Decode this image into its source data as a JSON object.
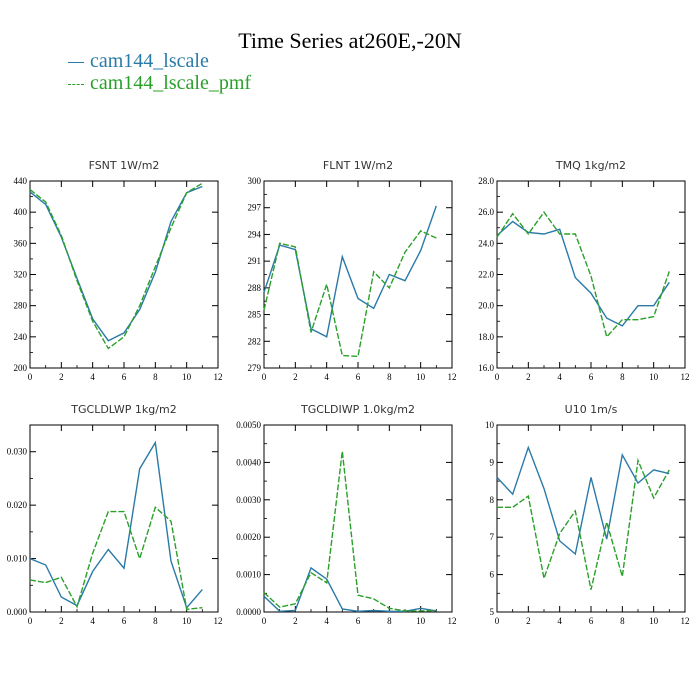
{
  "title": "Time Series at260E,-20N",
  "colors": {
    "series1": "#2a7aa8",
    "series2": "#2aa02a"
  },
  "legend": [
    "cam144_lscale",
    "cam144_lscale_pmf"
  ],
  "chart_data": [
    {
      "type": "line",
      "title": "FSNT   1W/m2",
      "xlim": [
        0,
        12
      ],
      "xticks": [
        0,
        2,
        4,
        6,
        8,
        10,
        12
      ],
      "ylim": [
        200,
        440
      ],
      "yticks": [
        200,
        240,
        280,
        320,
        360,
        400,
        440
      ],
      "ytick_labels": [
        "200",
        "240",
        "280",
        "320",
        "360",
        "400",
        "440"
      ],
      "x": [
        0,
        1,
        2,
        3,
        4,
        5,
        6,
        7,
        8,
        9,
        10,
        11
      ],
      "series": [
        {
          "name": "cam144_lscale",
          "values": [
            426,
            410,
            368,
            315,
            263,
            235,
            245,
            275,
            323,
            388,
            425,
            433
          ]
        },
        {
          "name": "cam144_lscale_pmf",
          "values": [
            429,
            413,
            370,
            312,
            260,
            225,
            240,
            280,
            330,
            380,
            425,
            437
          ]
        }
      ]
    },
    {
      "type": "line",
      "title": "FLNT   1W/m2",
      "xlim": [
        0,
        12
      ],
      "xticks": [
        0,
        2,
        4,
        6,
        8,
        10,
        12
      ],
      "ylim": [
        279,
        300
      ],
      "yticks": [
        279,
        282,
        285,
        288,
        291,
        294,
        297,
        300
      ],
      "ytick_labels": [
        "279",
        "282",
        "285",
        "288",
        "291",
        "294",
        "297",
        "300"
      ],
      "x": [
        0,
        1,
        2,
        3,
        4,
        5,
        6,
        7,
        8,
        9,
        10,
        11
      ],
      "series": [
        {
          "name": "cam144_lscale",
          "values": [
            287.5,
            292.8,
            292.3,
            283.4,
            282.5,
            291.5,
            286.8,
            285.7,
            289.5,
            288.8,
            292.2,
            297.2
          ]
        },
        {
          "name": "cam144_lscale_pmf",
          "values": [
            285.5,
            293.0,
            292.6,
            283.0,
            288.4,
            280.4,
            280.3,
            289.8,
            288.0,
            292.0,
            294.4,
            293.6
          ]
        }
      ]
    },
    {
      "type": "line",
      "title": "TMQ   1kg/m2",
      "xlim": [
        0,
        12
      ],
      "xticks": [
        0,
        2,
        4,
        6,
        8,
        10,
        12
      ],
      "ylim": [
        16,
        28
      ],
      "yticks": [
        16,
        18,
        20,
        22,
        24,
        26,
        28
      ],
      "ytick_labels": [
        "16.0",
        "18.0",
        "20.0",
        "22.0",
        "24.0",
        "26.0",
        "28.0"
      ],
      "x": [
        0,
        1,
        2,
        3,
        4,
        5,
        6,
        7,
        8,
        9,
        10,
        11
      ],
      "series": [
        {
          "name": "cam144_lscale",
          "values": [
            24.5,
            25.4,
            24.7,
            24.6,
            24.9,
            21.8,
            20.8,
            19.2,
            18.7,
            20.0,
            20.0,
            21.5
          ]
        },
        {
          "name": "cam144_lscale_pmf",
          "values": [
            24.4,
            25.9,
            24.6,
            26.0,
            24.6,
            24.6,
            21.9,
            18.0,
            19.1,
            19.1,
            19.3,
            22.2
          ]
        }
      ]
    },
    {
      "type": "line",
      "title": "TGCLDLWP   1kg/m2",
      "xlim": [
        0,
        12
      ],
      "xticks": [
        0,
        2,
        4,
        6,
        8,
        10,
        12
      ],
      "ylim": [
        0,
        0.035
      ],
      "yticks": [
        0,
        0.01,
        0.02,
        0.03
      ],
      "ytick_labels": [
        "0.000",
        "0.010",
        "0.020",
        "0.030"
      ],
      "x": [
        0,
        1,
        2,
        3,
        4,
        5,
        6,
        7,
        8,
        9,
        10,
        11
      ],
      "series": [
        {
          "name": "cam144_lscale",
          "values": [
            0.01,
            0.0088,
            0.0028,
            0.0012,
            0.0076,
            0.0117,
            0.0082,
            0.0268,
            0.0317,
            0.0095,
            0.0008,
            0.0042
          ]
        },
        {
          "name": "cam144_lscale_pmf",
          "values": [
            0.006,
            0.0055,
            0.0065,
            0.001,
            0.011,
            0.0188,
            0.0188,
            0.01,
            0.0196,
            0.017,
            0.0005,
            0.0008
          ]
        }
      ]
    },
    {
      "type": "line",
      "title": "TGCLDIWP   1.0kg/m2",
      "xlim": [
        0,
        12
      ],
      "xticks": [
        0,
        2,
        4,
        6,
        8,
        10,
        12
      ],
      "ylim": [
        0,
        0.005
      ],
      "yticks": [
        0,
        0.001,
        0.002,
        0.003,
        0.004,
        0.005
      ],
      "ytick_labels": [
        "0.0000",
        "0.0010",
        "0.0020",
        "0.0030",
        "0.0040",
        "0.0050"
      ],
      "x": [
        0,
        1,
        2,
        3,
        4,
        5,
        6,
        7,
        8,
        9,
        10,
        11
      ],
      "series": [
        {
          "name": "cam144_lscale",
          "values": [
            0.00042,
            2e-05,
            4e-05,
            0.00118,
            0.00088,
            8e-05,
            2e-05,
            4e-05,
            2e-05,
            2e-05,
            0.0001,
            3e-05
          ]
        },
        {
          "name": "cam144_lscale_pmf",
          "values": [
            0.00052,
            0.00013,
            0.00022,
            0.00105,
            0.00078,
            0.0043,
            0.00045,
            0.00035,
            0.0001,
            3e-05,
            3e-05,
            4e-05
          ]
        }
      ]
    },
    {
      "type": "line",
      "title": "U10   1m/s",
      "xlim": [
        0,
        12
      ],
      "xticks": [
        0,
        2,
        4,
        6,
        8,
        10,
        12
      ],
      "ylim": [
        5,
        10
      ],
      "yticks": [
        5,
        6,
        7,
        8,
        9,
        10
      ],
      "ytick_labels": [
        "5",
        "6",
        "7",
        "8",
        "9",
        "10"
      ],
      "x": [
        0,
        1,
        2,
        3,
        4,
        5,
        6,
        7,
        8,
        9,
        10,
        11
      ],
      "series": [
        {
          "name": "cam144_lscale",
          "values": [
            8.6,
            8.15,
            9.4,
            8.3,
            6.9,
            6.55,
            8.6,
            6.95,
            9.2,
            8.45,
            8.8,
            8.7
          ]
        },
        {
          "name": "cam144_lscale_pmf",
          "values": [
            7.8,
            7.8,
            8.1,
            5.9,
            7.1,
            7.7,
            5.6,
            7.4,
            5.95,
            9.05,
            8.05,
            8.8
          ]
        }
      ]
    }
  ]
}
